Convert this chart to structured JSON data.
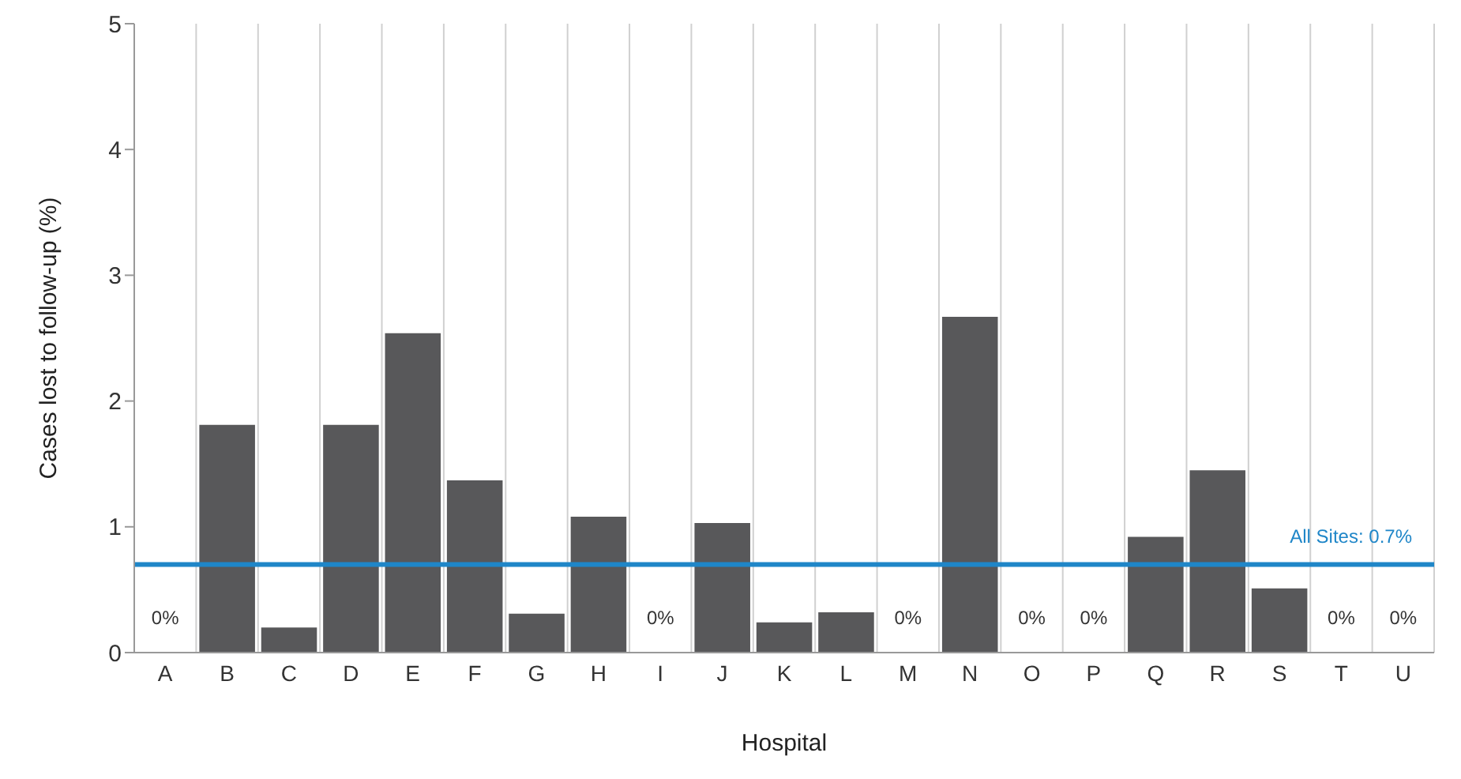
{
  "chart_data": {
    "type": "bar",
    "xlabel": "Hospital",
    "ylabel": "Cases lost to follow-up (%)",
    "categories": [
      "A",
      "B",
      "C",
      "D",
      "E",
      "F",
      "G",
      "H",
      "I",
      "J",
      "K",
      "L",
      "M",
      "N",
      "O",
      "P",
      "Q",
      "R",
      "S",
      "T",
      "U"
    ],
    "values": [
      0,
      1.81,
      0.2,
      1.81,
      2.54,
      1.37,
      0.31,
      1.08,
      0,
      1.03,
      0.24,
      0.32,
      0,
      2.67,
      0,
      0,
      0.92,
      1.45,
      0.51,
      0,
      0
    ],
    "value_labels": [
      "0%",
      null,
      null,
      null,
      null,
      null,
      null,
      null,
      "0%",
      null,
      null,
      null,
      "0%",
      null,
      "0%",
      "0%",
      null,
      null,
      null,
      "0%",
      "0%"
    ],
    "color": "#58585a",
    "ylim": [
      0,
      5
    ],
    "yticks": [
      0,
      1,
      2,
      3,
      4,
      5
    ],
    "grid": "x",
    "ref_lines": [
      {
        "axis": "y",
        "value": 0.7,
        "label": "All Sites: 0.7%",
        "color": "#1f86c8"
      }
    ]
  }
}
